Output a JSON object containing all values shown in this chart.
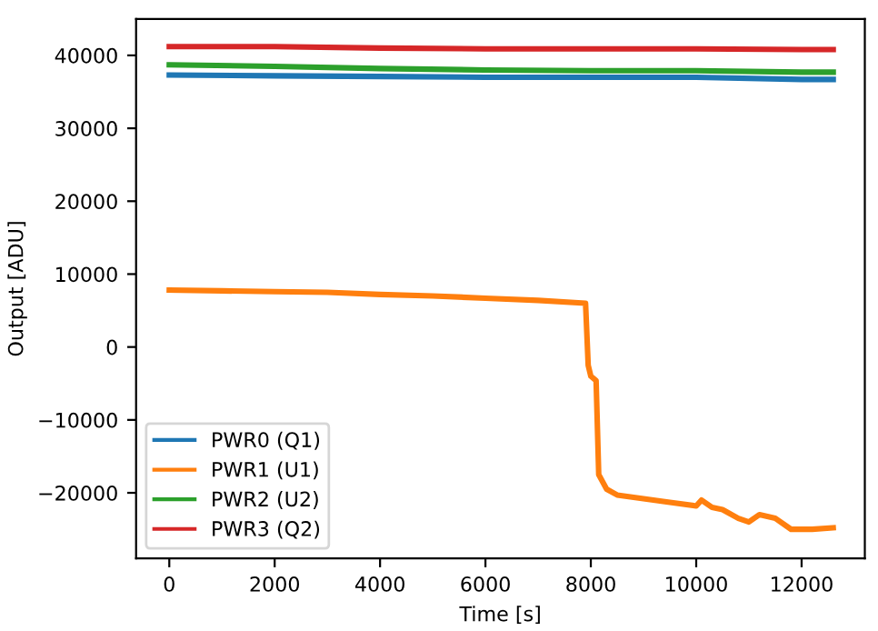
{
  "chart_data": {
    "type": "line",
    "xlabel": "Time [s]",
    "ylabel": "Output [ADU]",
    "xlim": [
      -630,
      13200
    ],
    "ylim": [
      -29000,
      45000
    ],
    "xticks": [
      0,
      2000,
      4000,
      6000,
      8000,
      10000,
      12000
    ],
    "yticks": [
      {
        "value": -20000,
        "label": "−20000"
      },
      {
        "value": -10000,
        "label": "−10000"
      },
      0,
      10000,
      20000,
      30000,
      40000
    ],
    "grid": false,
    "legend": "bottom left",
    "line_style": "solid",
    "marker": "none",
    "series": [
      {
        "name": "PWR0 (Q1)",
        "color": "#1f77b4",
        "x": [
          0,
          2000,
          4000,
          6000,
          8000,
          10000,
          12000,
          12600
        ],
        "values": [
          37300,
          37200,
          37100,
          37000,
          37000,
          37000,
          36700,
          36700
        ]
      },
      {
        "name": "PWR1 (U1)",
        "color": "#ff7f0e",
        "x": [
          0,
          1000,
          2000,
          3000,
          4000,
          5000,
          6000,
          7000,
          7900,
          7950,
          8000,
          8050,
          8100,
          8150,
          8300,
          8500,
          9000,
          9500,
          10000,
          10100,
          10300,
          10500,
          10800,
          11000,
          11200,
          11500,
          11800,
          12200,
          12600
        ],
        "values": [
          7800,
          7700,
          7600,
          7500,
          7200,
          7000,
          6700,
          6400,
          6000,
          -2500,
          -4000,
          -4300,
          -4600,
          -17500,
          -19500,
          -20300,
          -20800,
          -21300,
          -21800,
          -21000,
          -22000,
          -22300,
          -23500,
          -24000,
          -23000,
          -23500,
          -25000,
          -25000,
          -24800
        ]
      },
      {
        "name": "PWR2 (U2)",
        "color": "#2ca02c",
        "x": [
          0,
          2000,
          4000,
          6000,
          8000,
          10000,
          12000,
          12600
        ],
        "values": [
          38700,
          38500,
          38200,
          38000,
          37900,
          37900,
          37700,
          37700
        ]
      },
      {
        "name": "PWR3 (Q2)",
        "color": "#d62728",
        "x": [
          0,
          2000,
          4000,
          6000,
          8000,
          10000,
          12000,
          12600
        ],
        "values": [
          41200,
          41200,
          41000,
          40900,
          40900,
          40900,
          40800,
          40800
        ]
      }
    ]
  }
}
